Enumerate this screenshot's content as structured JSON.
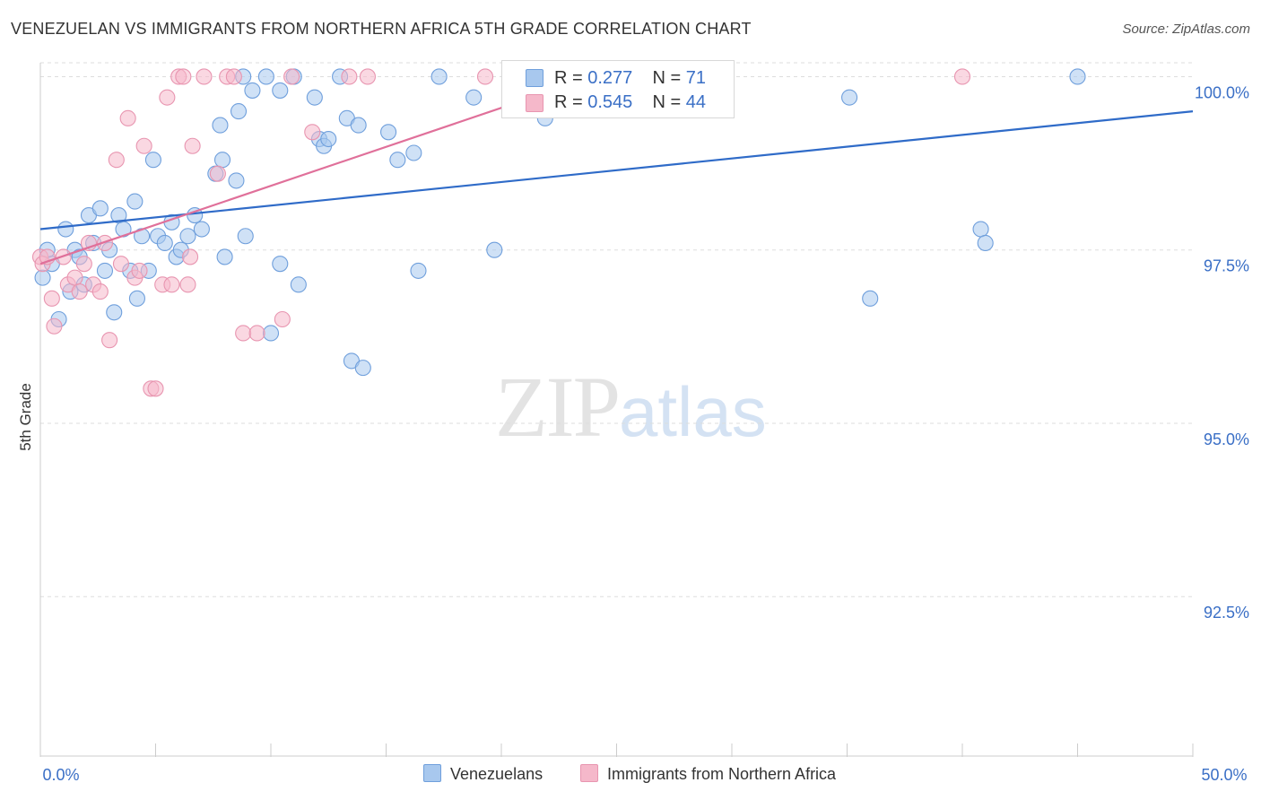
{
  "title": "VENEZUELAN VS IMMIGRANTS FROM NORTHERN AFRICA 5TH GRADE CORRELATION CHART",
  "source": "Source: ZipAtlas.com",
  "watermark": {
    "zip": "ZIP",
    "atlas": "atlas"
  },
  "legend": {
    "r_label": "R =",
    "n_label": "N =",
    "rows": [
      {
        "r": "0.277",
        "n": "71"
      },
      {
        "r": "0.545",
        "n": "44"
      }
    ]
  },
  "colors": {
    "blue_fill": "#a8c8ee",
    "blue_stroke": "#6f9fdc",
    "blue_line": "#2f6bc8",
    "pink_fill": "#f5b8ca",
    "pink_stroke": "#e895b0",
    "pink_line": "#e0709a",
    "tick_label": "#3a6fc6",
    "grid": "#dddddd"
  },
  "chart_data": {
    "type": "scatter",
    "title": "VENEZUELAN VS IMMIGRANTS FROM NORTHERN AFRICA 5TH GRADE CORRELATION CHART",
    "xlabel": "",
    "ylabel": "5th Grade",
    "xlim": [
      0,
      50
    ],
    "ylim": [
      90.2,
      100.2
    ],
    "x_tick_labels": [
      "0.0%",
      "50.0%"
    ],
    "y_ticks": [
      {
        "value": 92.5,
        "label": "92.5%"
      },
      {
        "value": 95.0,
        "label": "95.0%"
      },
      {
        "value": 97.5,
        "label": "97.5%"
      },
      {
        "value": 100.0,
        "label": "100.0%"
      }
    ],
    "series": [
      {
        "name": "Venezuelans",
        "r": 0.277,
        "n": 71,
        "trend": {
          "x0": 0,
          "y0": 97.8,
          "x1": 50,
          "y1": 99.5
        },
        "points": [
          [
            0.1,
            97.1
          ],
          [
            0.3,
            97.5
          ],
          [
            0.5,
            97.3
          ],
          [
            0.8,
            96.5
          ],
          [
            1.1,
            97.8
          ],
          [
            1.3,
            96.9
          ],
          [
            1.5,
            97.5
          ],
          [
            1.7,
            97.4
          ],
          [
            1.9,
            97.0
          ],
          [
            2.1,
            98.0
          ],
          [
            2.3,
            97.6
          ],
          [
            2.6,
            98.1
          ],
          [
            2.8,
            97.2
          ],
          [
            3.0,
            97.5
          ],
          [
            3.2,
            96.6
          ],
          [
            3.4,
            98.0
          ],
          [
            3.6,
            97.8
          ],
          [
            3.9,
            97.2
          ],
          [
            4.1,
            98.2
          ],
          [
            4.2,
            96.8
          ],
          [
            4.4,
            97.7
          ],
          [
            4.7,
            97.2
          ],
          [
            4.9,
            98.8
          ],
          [
            5.1,
            97.7
          ],
          [
            5.4,
            97.6
          ],
          [
            5.7,
            97.9
          ],
          [
            5.9,
            97.4
          ],
          [
            6.1,
            97.5
          ],
          [
            6.4,
            97.7
          ],
          [
            6.7,
            98.0
          ],
          [
            7.0,
            97.8
          ],
          [
            7.6,
            98.6
          ],
          [
            7.8,
            99.3
          ],
          [
            7.9,
            98.8
          ],
          [
            8.0,
            97.4
          ],
          [
            8.5,
            98.5
          ],
          [
            8.6,
            99.5
          ],
          [
            8.8,
            100.0
          ],
          [
            8.9,
            97.7
          ],
          [
            9.2,
            99.8
          ],
          [
            9.8,
            100.0
          ],
          [
            10.0,
            96.3
          ],
          [
            10.4,
            97.3
          ],
          [
            10.4,
            99.8
          ],
          [
            11.0,
            100.0
          ],
          [
            11.2,
            97.0
          ],
          [
            11.9,
            99.7
          ],
          [
            12.1,
            99.1
          ],
          [
            12.3,
            99.0
          ],
          [
            12.5,
            99.1
          ],
          [
            13.0,
            100.0
          ],
          [
            13.3,
            99.4
          ],
          [
            13.5,
            95.9
          ],
          [
            13.8,
            99.3
          ],
          [
            14.0,
            95.8
          ],
          [
            15.1,
            99.2
          ],
          [
            15.5,
            98.8
          ],
          [
            16.2,
            98.9
          ],
          [
            16.4,
            97.2
          ],
          [
            17.3,
            100.0
          ],
          [
            18.8,
            99.7
          ],
          [
            19.7,
            97.5
          ],
          [
            21.1,
            100.0
          ],
          [
            21.9,
            99.4
          ],
          [
            23.8,
            100.0
          ],
          [
            27.4,
            100.0
          ],
          [
            35.1,
            99.7
          ],
          [
            36.0,
            96.8
          ],
          [
            40.8,
            97.8
          ],
          [
            41.0,
            97.6
          ],
          [
            45.0,
            100.0
          ]
        ]
      },
      {
        "name": "Immigrants from Northern Africa",
        "r": 0.545,
        "n": 44,
        "trend": {
          "x0": 0,
          "y0": 97.3,
          "x1": 24.0,
          "y1": 100.0
        },
        "points": [
          [
            0.0,
            97.4
          ],
          [
            0.1,
            97.3
          ],
          [
            0.3,
            97.4
          ],
          [
            0.5,
            96.8
          ],
          [
            0.6,
            96.4
          ],
          [
            1.0,
            97.4
          ],
          [
            1.2,
            97.0
          ],
          [
            1.5,
            97.1
          ],
          [
            1.7,
            96.9
          ],
          [
            1.9,
            97.3
          ],
          [
            2.1,
            97.6
          ],
          [
            2.3,
            97.0
          ],
          [
            2.6,
            96.9
          ],
          [
            2.8,
            97.6
          ],
          [
            3.0,
            96.2
          ],
          [
            3.3,
            98.8
          ],
          [
            3.5,
            97.3
          ],
          [
            3.8,
            99.4
          ],
          [
            4.1,
            97.1
          ],
          [
            4.3,
            97.2
          ],
          [
            4.5,
            99.0
          ],
          [
            4.8,
            95.5
          ],
          [
            5.0,
            95.5
          ],
          [
            5.3,
            97.0
          ],
          [
            5.5,
            99.7
          ],
          [
            5.7,
            97.0
          ],
          [
            6.0,
            100.0
          ],
          [
            6.2,
            100.0
          ],
          [
            6.4,
            97.0
          ],
          [
            6.5,
            97.4
          ],
          [
            6.6,
            99.0
          ],
          [
            7.1,
            100.0
          ],
          [
            7.7,
            98.6
          ],
          [
            8.1,
            100.0
          ],
          [
            8.4,
            100.0
          ],
          [
            8.8,
            96.3
          ],
          [
            9.4,
            96.3
          ],
          [
            10.5,
            96.5
          ],
          [
            10.9,
            100.0
          ],
          [
            11.8,
            99.2
          ],
          [
            13.4,
            100.0
          ],
          [
            14.2,
            100.0
          ],
          [
            19.3,
            100.0
          ],
          [
            40.0,
            100.0
          ]
        ]
      }
    ]
  }
}
